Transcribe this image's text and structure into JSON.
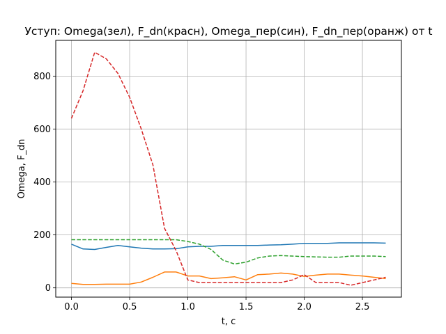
{
  "chart_data": {
    "type": "line",
    "title": "Уступ: Omega(зел), F_dn(красн), Omega_пер(син), F_dn_пер(оранж) от t",
    "xlabel": "t, c",
    "ylabel": "Omega, F_dn",
    "xlim": [
      -0.135,
      2.835
    ],
    "ylim": [
      -35,
      935
    ],
    "xticks": [
      0.0,
      0.5,
      1.0,
      1.5,
      2.0,
      2.5
    ],
    "xtick_labels": [
      "0.0",
      "0.5",
      "1.0",
      "1.5",
      "2.0",
      "2.5"
    ],
    "yticks": [
      0,
      200,
      400,
      600,
      800
    ],
    "ytick_labels": [
      "0",
      "200",
      "400",
      "600",
      "800"
    ],
    "grid": true,
    "legend": "none",
    "x": [
      0.0,
      0.1,
      0.2,
      0.3,
      0.4,
      0.5,
      0.6,
      0.7,
      0.8,
      0.9,
      1.0,
      1.1,
      1.2,
      1.3,
      1.4,
      1.5,
      1.6,
      1.7,
      1.8,
      1.9,
      2.0,
      2.1,
      2.2,
      2.3,
      2.4,
      2.5,
      2.6,
      2.7
    ],
    "series": [
      {
        "color": "#1f77b4",
        "dash": "solid",
        "values": [
          165,
          147,
          145,
          153,
          160,
          155,
          150,
          147,
          147,
          148,
          155,
          157,
          157,
          160,
          160,
          160,
          160,
          162,
          163,
          165,
          168,
          168,
          168,
          170,
          170,
          170,
          170,
          169
        ]
      },
      {
        "color": "#ff7f0e",
        "dash": "solid",
        "values": [
          17,
          13,
          13,
          14,
          14,
          14,
          22,
          40,
          60,
          60,
          45,
          45,
          35,
          38,
          42,
          30,
          50,
          52,
          56,
          52,
          43,
          48,
          52,
          52,
          48,
          45,
          40,
          35
        ]
      },
      {
        "color": "#2ca02c",
        "dash": "dashed",
        "values": [
          182,
          182,
          182,
          182,
          182,
          182,
          182,
          182,
          182,
          182,
          175,
          165,
          145,
          105,
          90,
          97,
          113,
          120,
          122,
          120,
          118,
          117,
          116,
          116,
          120,
          120,
          120,
          118
        ]
      },
      {
        "color": "#d62728",
        "dash": "dashed",
        "values": [
          640,
          745,
          890,
          865,
          810,
          720,
          600,
          465,
          225,
          140,
          30,
          20,
          20,
          20,
          20,
          20,
          20,
          20,
          20,
          30,
          50,
          20,
          20,
          20,
          10,
          20,
          30,
          40
        ]
      }
    ]
  }
}
